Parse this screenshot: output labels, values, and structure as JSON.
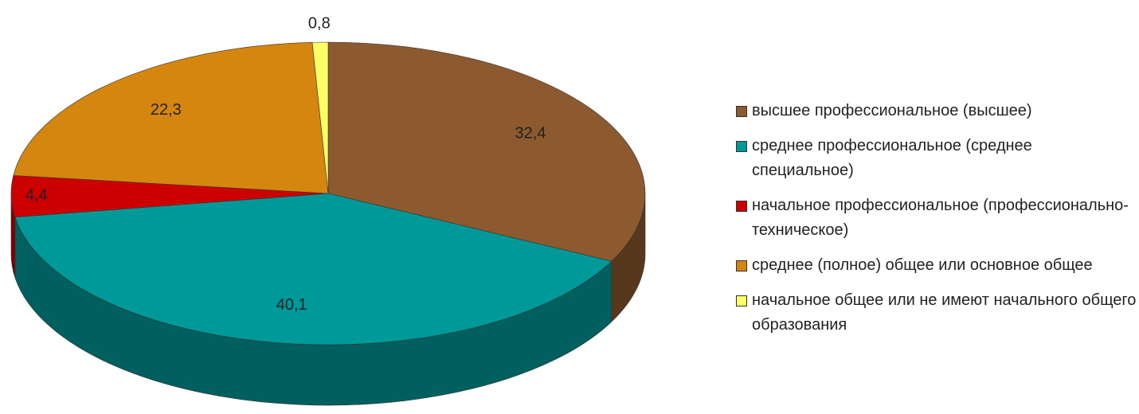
{
  "chart_data": {
    "type": "pie3d",
    "categories": [
      "высшее профессиональное (высшее)",
      "среднее профессиональное (среднее специальное)",
      "начальное профессиональное (профессионально-техническое)",
      "среднее (полное) общее или основное общее",
      "начальное общее или не имеют начального общего образования"
    ],
    "values": [
      32.4,
      40.1,
      4.4,
      22.3,
      0.8
    ],
    "value_labels": [
      "32,4",
      "40,1",
      "4,4",
      "22,3",
      "0,8"
    ],
    "colors": [
      "#8c5a2e",
      "#009999",
      "#cc0000",
      "#d4860f",
      "#ffff66"
    ],
    "legend": "right"
  }
}
